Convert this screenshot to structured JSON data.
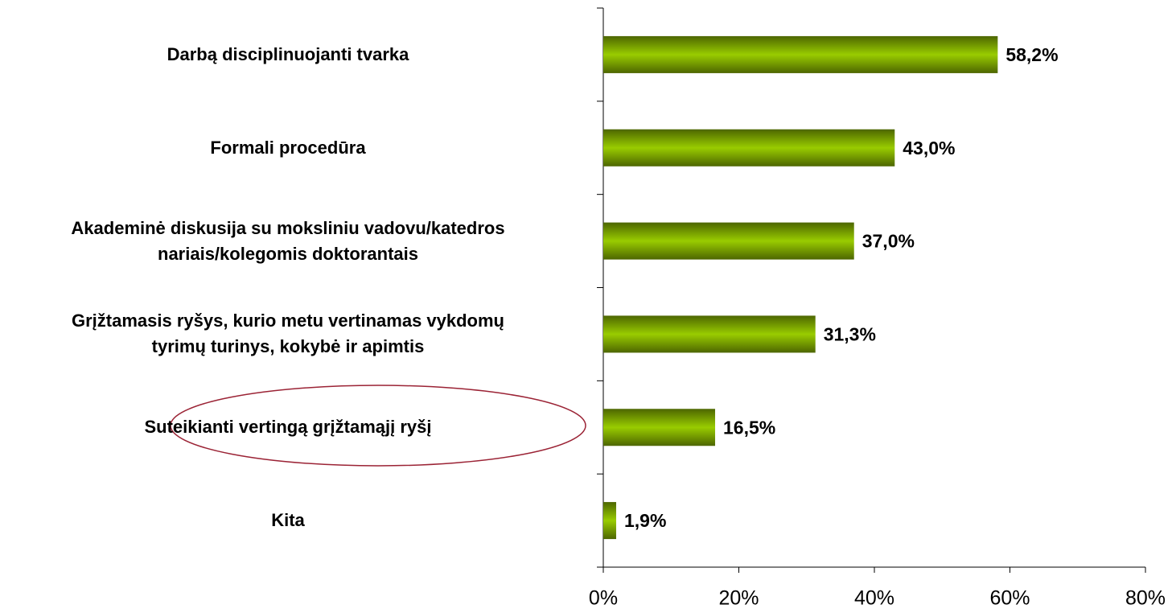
{
  "chart_data": {
    "type": "bar",
    "orientation": "horizontal",
    "categories": [
      "Darbą disciplinuojanti tvarka",
      "Formali procedūra",
      "Akademinė diskusija su moksliniu vadovu/katedros\nnariais/kolegomis doktorantais",
      "Grįžtamasis ryšys, kurio metu vertinamas vykdomų\ntyrimų turinys, kokybė ir apimtis",
      "Suteikianti vertingą grįžtamąjį ryšį",
      "Kita"
    ],
    "values": [
      58.2,
      43.0,
      37.0,
      31.3,
      16.5,
      1.9
    ],
    "value_labels": [
      "58,2%",
      "43,0%",
      "37,0%",
      "31,3%",
      "16,5%",
      "1,9%"
    ],
    "color": "#99cc00",
    "xlim": [
      0,
      80
    ],
    "xticks": [
      {
        "value": 0,
        "label": "0%"
      },
      {
        "value": 20,
        "label": "20%"
      },
      {
        "value": 40,
        "label": "40%"
      },
      {
        "value": 60,
        "label": "60%"
      },
      {
        "value": 80,
        "label": "80%"
      }
    ]
  }
}
